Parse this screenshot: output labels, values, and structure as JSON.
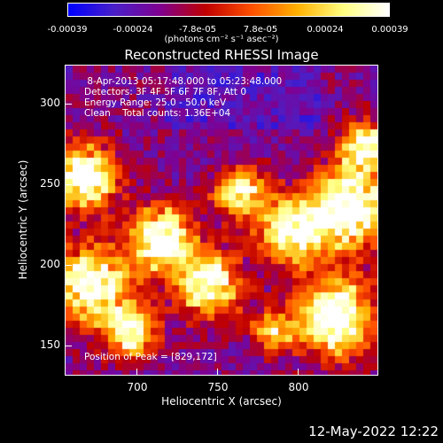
{
  "colorbar": {
    "tick_labels": [
      "-0.00039",
      "-0.00024",
      "-7.8e-05",
      "7.8e-05",
      "0.00024",
      "0.00039"
    ],
    "unit_label": "(photons cm⁻² s⁻¹ asec⁻²)",
    "colors": [
      "#0000ff",
      "#4a20c8",
      "#800090",
      "#c00000",
      "#ff5000",
      "#ffb000",
      "#ffff80",
      "#ffffff"
    ]
  },
  "plot": {
    "title": "Reconstructed RHESSI Image",
    "info_line1": " 8-Apr-2013 05:17:48.000 to 05:23:48.000",
    "info_line2": "Detectors: 3F 4F 5F 6F 7F 8F, Att 0",
    "info_line3": "Energy Range: 25.0 - 50.0 keV",
    "info_line4": "Clean    Total counts: 1.36E+04",
    "peak_text": "Position of Peak = [829,172]",
    "xlabel": "Heliocentric X (arcsec)",
    "ylabel": "Heliocentric Y (arcsec)",
    "x_ticks": [
      "700",
      "750",
      "800"
    ],
    "y_ticks": [
      "300",
      "250",
      "200",
      "150"
    ],
    "x_range": [
      660,
      850
    ],
    "y_range": [
      130,
      320
    ]
  },
  "footer": {
    "date": "12-May-2022 12:22"
  }
}
